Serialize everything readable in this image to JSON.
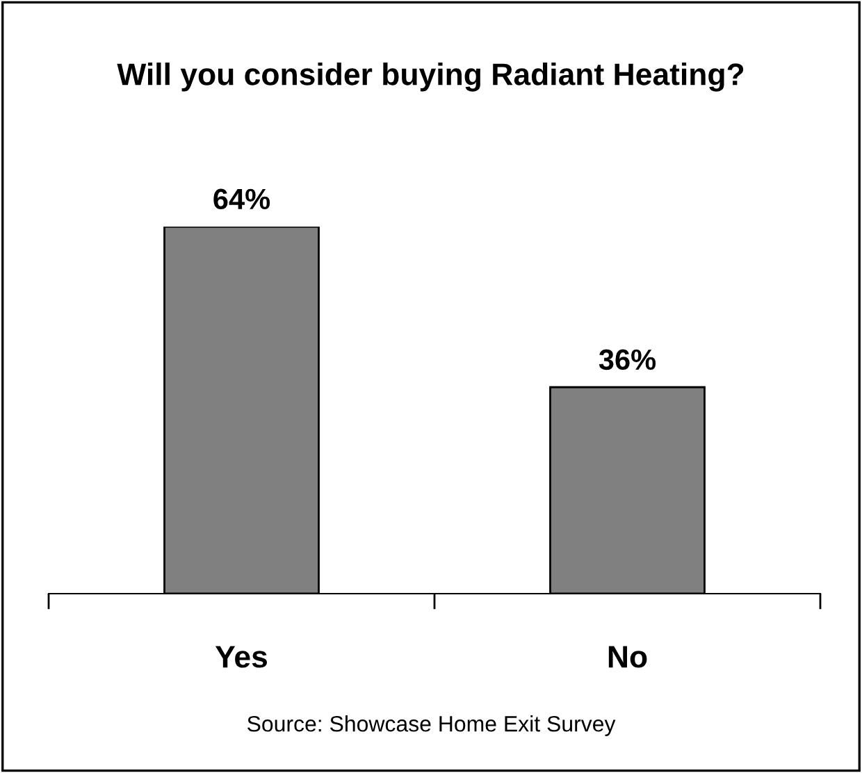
{
  "chart_data": {
    "type": "bar",
    "title": "Will you consider buying Radiant Heating?",
    "categories": [
      "Yes",
      "No"
    ],
    "values": [
      64,
      36
    ],
    "color": "#808080",
    "data_labels": true,
    "value_labels": [
      "64%",
      "36%"
    ],
    "grid": false,
    "annotations": [
      "Source: Showcase Home Exit Survey"
    ]
  }
}
